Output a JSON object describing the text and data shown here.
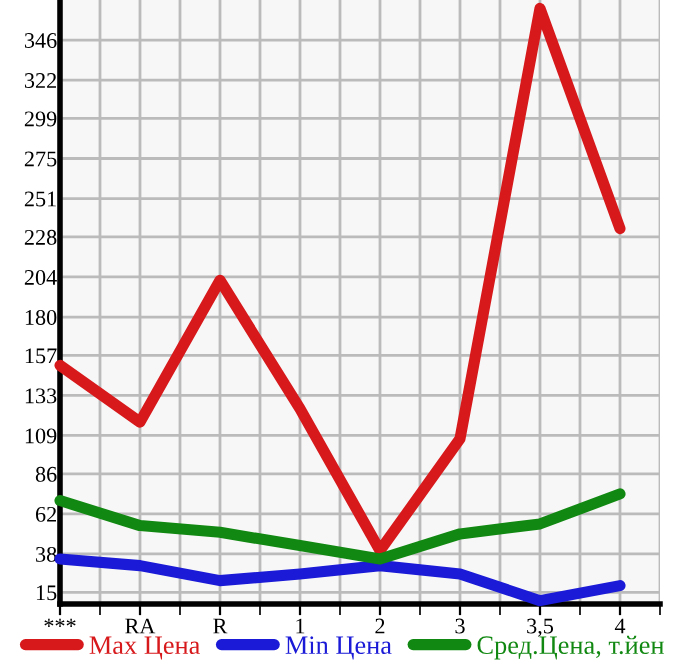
{
  "chart_data": {
    "type": "line",
    "categories": [
      "***",
      "RA",
      "R",
      "1",
      "2",
      "3",
      "3,5",
      "4"
    ],
    "series": [
      {
        "name": "Max Цена",
        "color": "#d7191c",
        "values": [
          151,
          117,
          202,
          125,
          40,
          107,
          365,
          233
        ]
      },
      {
        "name": "Min Цена",
        "color": "#1a1ad7",
        "values": [
          35,
          31,
          22,
          26,
          31,
          26,
          10,
          19
        ]
      },
      {
        "name": "Сред.Цена, т.йен",
        "color": "#118811",
        "values": [
          70,
          55,
          51,
          43,
          35,
          50,
          56,
          74
        ]
      }
    ],
    "ylim": [
      8,
      370
    ],
    "yticks": [
      15,
      38,
      62,
      86,
      109,
      133,
      157,
      180,
      204,
      228,
      251,
      275,
      299,
      322,
      346
    ],
    "grid": true,
    "legend": "bottom",
    "marker": "none",
    "line_style": "solid"
  }
}
